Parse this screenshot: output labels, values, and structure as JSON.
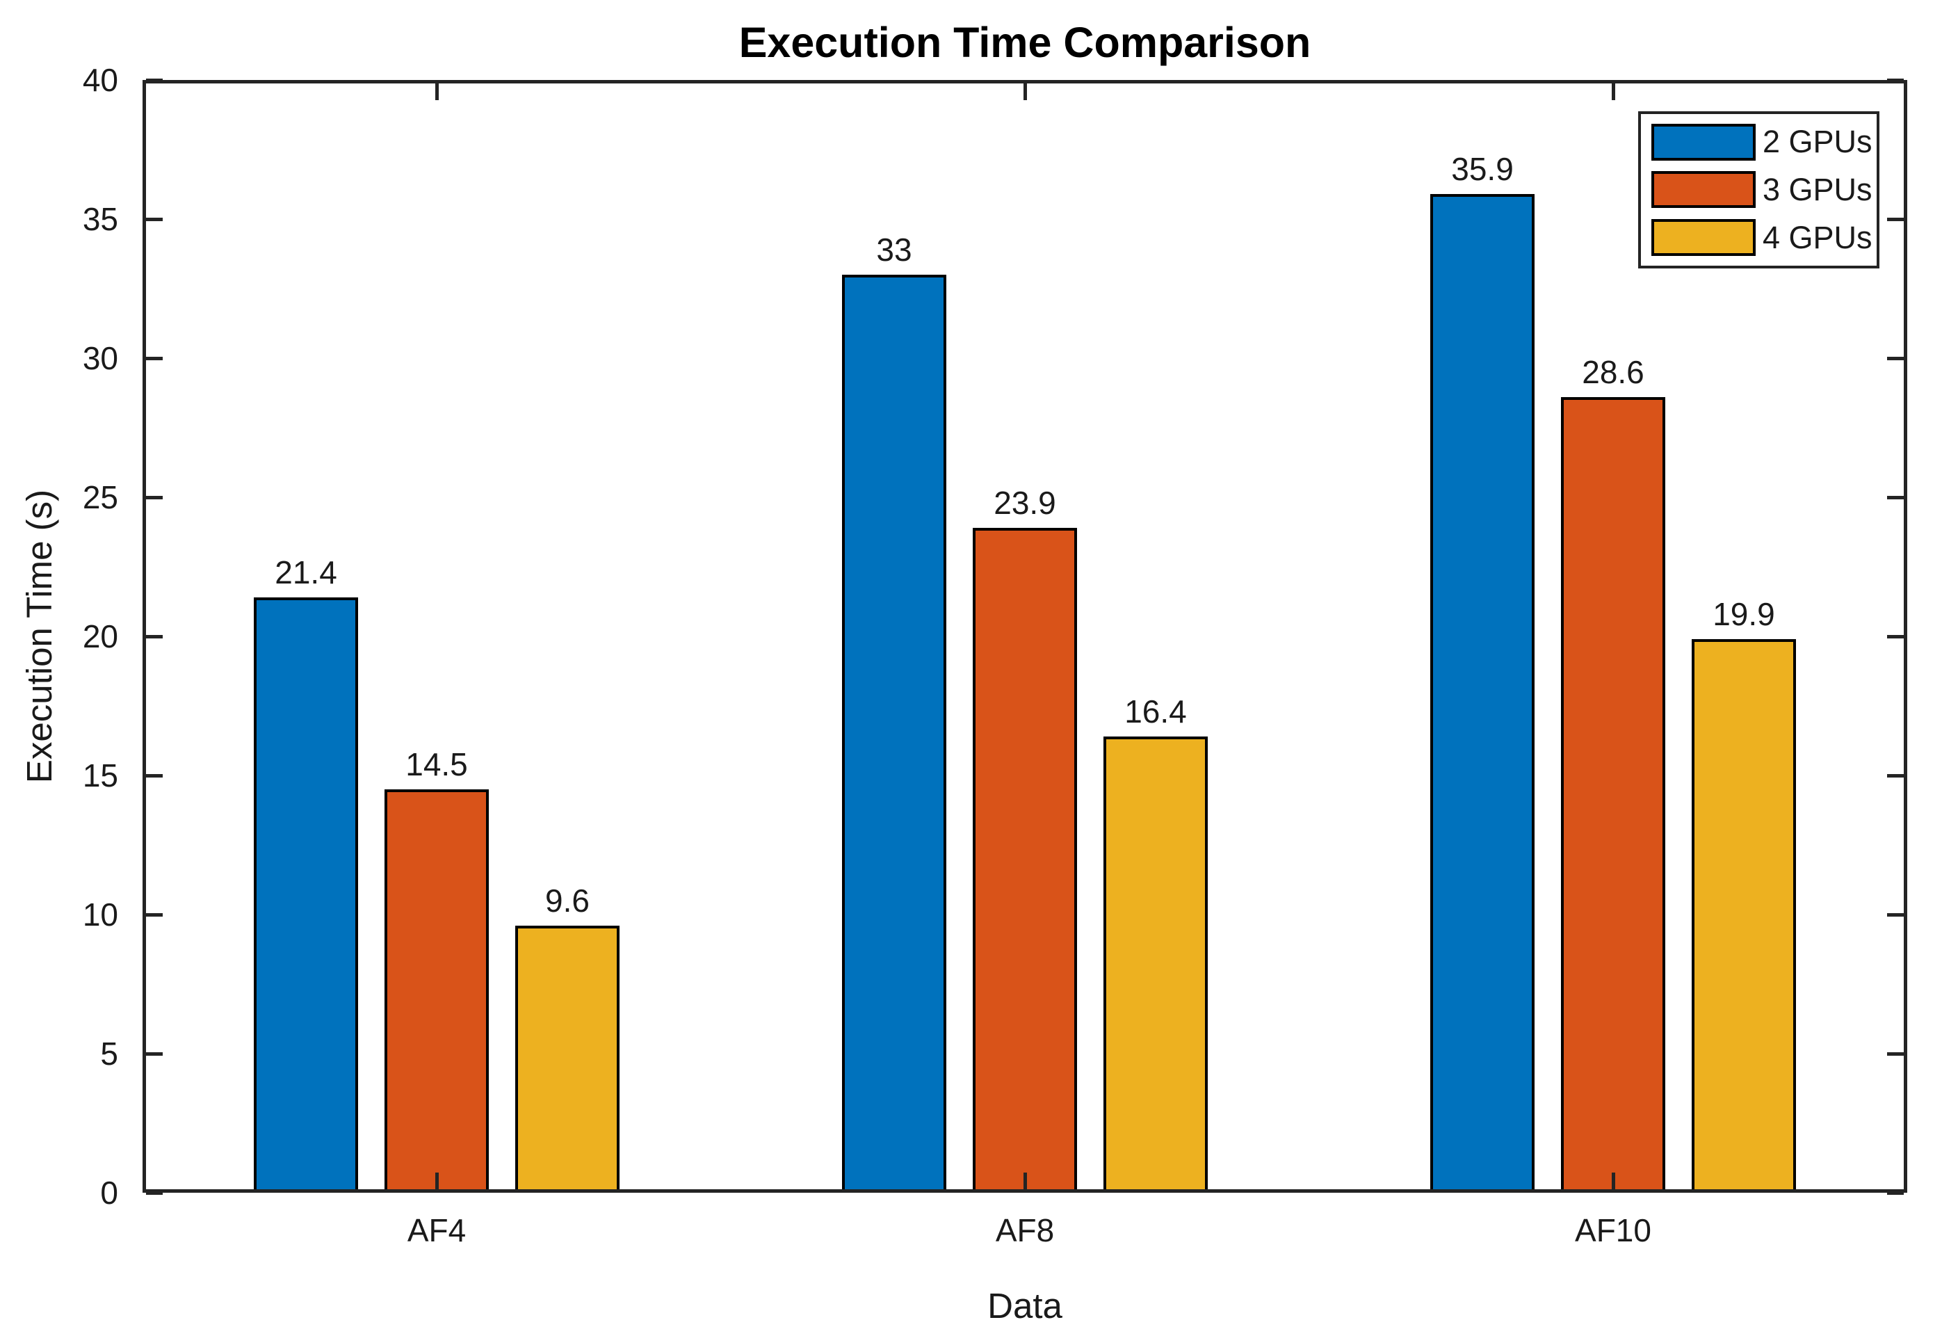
{
  "chart_data": {
    "type": "bar",
    "title": "Execution Time Comparison",
    "xlabel": "Data",
    "ylabel": "Execution Time (s)",
    "categories": [
      "AF4",
      "AF8",
      "AF10"
    ],
    "series": [
      {
        "name": "2 GPUs",
        "color": "#0072BD",
        "values": [
          21.4,
          33,
          35.9
        ]
      },
      {
        "name": "3 GPUs",
        "color": "#D95319",
        "values": [
          14.5,
          23.9,
          28.6
        ]
      },
      {
        "name": "4 GPUs",
        "color": "#EDB120",
        "values": [
          9.6,
          16.4,
          19.9
        ]
      }
    ],
    "bar_value_labels": [
      [
        "21.4",
        "33",
        "35.9"
      ],
      [
        "14.5",
        "23.9",
        "28.6"
      ],
      [
        "9.6",
        "16.4",
        "19.9"
      ]
    ],
    "ylim": [
      0,
      40
    ],
    "yticks": [
      0,
      5,
      10,
      15,
      20,
      25,
      30,
      35,
      40
    ],
    "grid": false,
    "legend_position": "top-right",
    "bar_edge_color": "#000000",
    "axis_color": "#242424",
    "background_color": "#ffffff"
  }
}
